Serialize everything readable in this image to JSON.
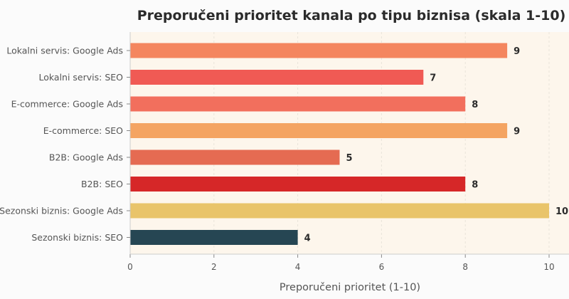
{
  "chart_data": {
    "type": "bar",
    "orientation": "horizontal",
    "title": "Preporučeni prioritet kanala po tipu biznisa (skala 1-10)",
    "xlabel": "Preporučeni prioritet (1-10)",
    "ylabel": "",
    "xlim": [
      0,
      10.5
    ],
    "xticks": [
      0,
      2,
      4,
      6,
      8,
      10
    ],
    "grid": true,
    "categories": [
      "Lokalni servis: Google Ads",
      "Lokalni servis: SEO",
      "E-commerce: Google Ads",
      "E-commerce: SEO",
      "B2B: Google Ads",
      "B2B: SEO",
      "Sezonski biznis: Google Ads",
      "Sezonski biznis: SEO"
    ],
    "values": [
      9,
      7,
      8,
      9,
      5,
      8,
      10,
      4
    ],
    "colors": [
      "#f4865f",
      "#f05a54",
      "#f26f5d",
      "#f4a462",
      "#e56b52",
      "#d62728",
      "#e9c46a",
      "#264653"
    ]
  }
}
